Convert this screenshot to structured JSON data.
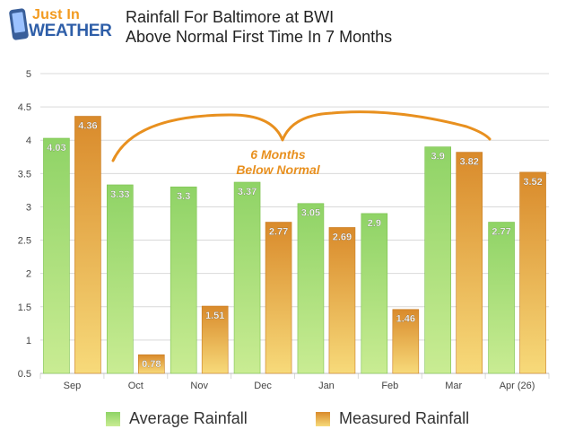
{
  "brand": {
    "line1": "Just In",
    "line2": "WEATHER"
  },
  "title": {
    "line1": "Rainfall For Baltimore at BWI",
    "line2": "Above Normal First Time In 7 Months"
  },
  "annotation": {
    "line1": "6 Months",
    "line2": "Below Normal",
    "color": "#e8901f"
  },
  "colors": {
    "average_top": "#8fd366",
    "average_bottom": "#c9ec93",
    "measured_top": "#d98a2b",
    "measured_bottom": "#f7da7a",
    "grid": "#d9d9d9",
    "label_text": "#ffffff"
  },
  "chart_data": {
    "type": "bar",
    "title": "Rainfall For Baltimore at BWI",
    "subtitle": "Above Normal First Time In 7 Months",
    "categories": [
      "Sep",
      "Oct",
      "Nov",
      "Dec",
      "Jan",
      "Feb",
      "Mar",
      "Apr (26)"
    ],
    "series": [
      {
        "name": "Average Rainfall",
        "values": [
          4.03,
          3.33,
          3.3,
          3.37,
          3.05,
          2.9,
          3.9,
          2.77
        ]
      },
      {
        "name": "Measured Rainfall",
        "values": [
          4.36,
          0.78,
          1.51,
          2.77,
          2.69,
          1.46,
          3.82,
          3.52
        ]
      }
    ],
    "value_labels": [
      [
        "4.03",
        "3.33",
        "3.3",
        "3.37",
        "3.05",
        "2.9",
        "3.9",
        "2.77"
      ],
      [
        "4.36",
        "0.78",
        "1.51",
        "2.77",
        "2.69",
        "1.46",
        "3.82",
        "3.52"
      ]
    ],
    "yticks": [
      "0.5",
      "1",
      "1.5",
      "2",
      "2.5",
      "3",
      "3.5",
      "4",
      "4.5",
      "5"
    ],
    "ylim": [
      0.5,
      5
    ],
    "grid": true,
    "legend": "bottom"
  }
}
